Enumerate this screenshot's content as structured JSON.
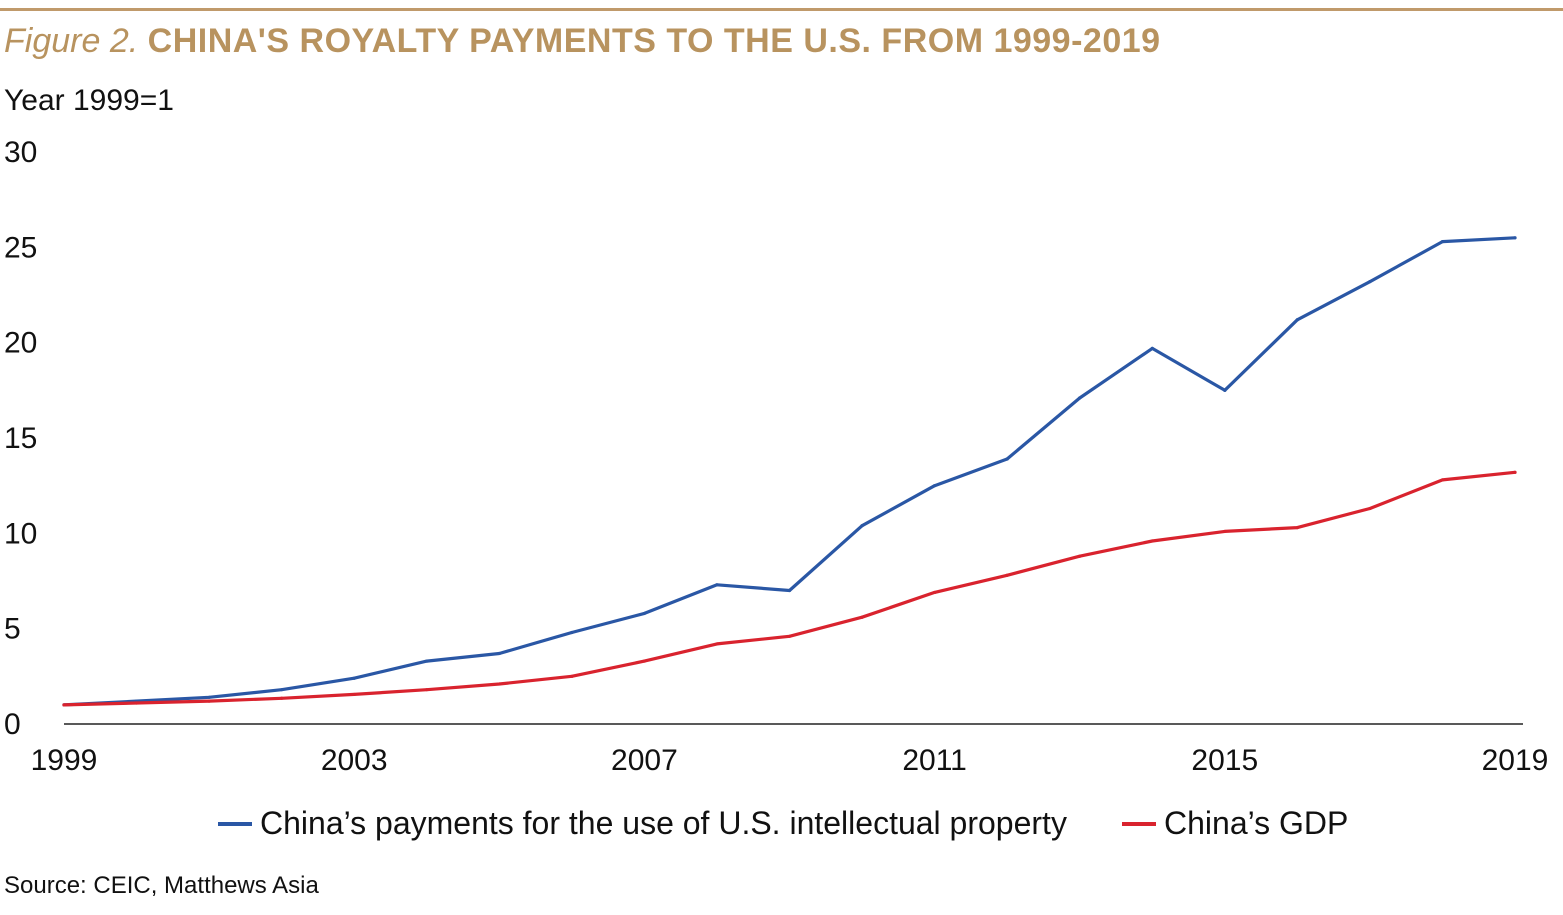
{
  "header": {
    "figure_label": "Figure 2.",
    "title": "CHINA'S ROYALTY PAYMENTS TO THE U.S. FROM 1999-2019",
    "unit": "Year 1999=1"
  },
  "colors": {
    "accent": "#c09a6b",
    "title": "#b8935f",
    "payments": "#2a57a5",
    "gdp": "#d9232e"
  },
  "source": "Source: CEIC, Matthews Asia",
  "chart_data": {
    "type": "line",
    "title": "CHINA'S ROYALTY PAYMENTS TO THE U.S. FROM 1999-2019",
    "ylabel": "Year 1999=1",
    "xlabel": "",
    "x": [
      1999,
      2000,
      2001,
      2002,
      2003,
      2004,
      2005,
      2006,
      2007,
      2008,
      2009,
      2010,
      2011,
      2012,
      2013,
      2014,
      2015,
      2016,
      2017,
      2018,
      2019
    ],
    "xlim": [
      1999,
      2019
    ],
    "xticks": [
      "1999",
      "2003",
      "2007",
      "2011",
      "2015",
      "2019"
    ],
    "ylim": [
      0,
      30
    ],
    "yticks": [
      "0",
      "5",
      "10",
      "15",
      "20",
      "25",
      "30"
    ],
    "grid": false,
    "legend_position": "bottom",
    "series": [
      {
        "name": "China’s payments for the use of U.S. intellectual property",
        "color": "#2a57a5",
        "values": [
          1.0,
          1.2,
          1.4,
          1.8,
          2.4,
          3.3,
          3.7,
          4.8,
          5.8,
          7.3,
          7.0,
          10.4,
          12.5,
          13.9,
          17.1,
          19.7,
          17.5,
          21.2,
          23.2,
          25.3,
          25.5
        ]
      },
      {
        "name": "China’s GDP",
        "color": "#d9232e",
        "values": [
          1.0,
          1.1,
          1.2,
          1.35,
          1.55,
          1.8,
          2.1,
          2.5,
          3.3,
          4.2,
          4.6,
          5.6,
          6.9,
          7.8,
          8.8,
          9.6,
          10.1,
          10.3,
          11.3,
          12.8,
          13.2
        ]
      }
    ]
  }
}
